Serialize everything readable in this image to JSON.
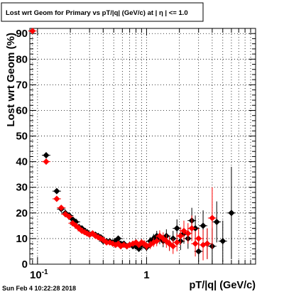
{
  "chart_data": {
    "type": "scatter",
    "title": "Lost wrt Geom for Primary vs pT/|q| (GeV/c) at |  η | <= 1.0",
    "xlabel": "pT/|q| (GeV/c)",
    "ylabel": "Lost wrt Geom (%)",
    "xscale": "log",
    "xlim": [
      0.085,
      10.0
    ],
    "ylim": [
      0,
      92
    ],
    "yticks": [
      0,
      10,
      20,
      30,
      40,
      50,
      60,
      70,
      80,
      90
    ],
    "xtick_labels": [
      {
        "value": 0.1,
        "base": "10",
        "exp": "-1"
      },
      {
        "value": 1.0,
        "base": "1",
        "exp": ""
      }
    ],
    "grid": true,
    "timestamp": "Sun Feb  4 10:22:28 2018",
    "colors": {
      "series_black": "#000000",
      "series_red": "#ff0000"
    },
    "series": [
      {
        "color": "black",
        "x": [
          0.12,
          0.15,
          0.165,
          0.18,
          0.195,
          0.21,
          0.225,
          0.24,
          0.255,
          0.27,
          0.285,
          0.3,
          0.32,
          0.34,
          0.36,
          0.38,
          0.4,
          0.43,
          0.46,
          0.49,
          0.52,
          0.55,
          0.58,
          0.62,
          0.66,
          0.7,
          0.75,
          0.8,
          0.85,
          0.9,
          0.95,
          1.0,
          1.08,
          1.16,
          1.24,
          1.32,
          1.42,
          1.52,
          1.62,
          1.75,
          1.9,
          2.05,
          2.2,
          2.4,
          2.6,
          2.8,
          3.0,
          3.3,
          3.6,
          4.0,
          4.4,
          5.0,
          6.0
        ],
        "y": [
          42.5,
          28.5,
          21.5,
          20,
          19,
          17.5,
          16.5,
          14.5,
          14,
          13,
          12.5,
          11.5,
          12,
          11.5,
          11,
          10.5,
          9,
          9,
          9,
          8.5,
          9,
          10,
          8,
          8,
          7,
          7.5,
          7,
          7,
          6,
          7.5,
          7.5,
          6.5,
          9,
          10,
          11,
          10,
          9,
          11,
          8,
          10,
          14,
          9,
          12,
          10,
          17,
          14,
          5,
          15,
          8,
          7,
          16.5,
          9,
          20
        ],
        "err": [
          1.2,
          1.0,
          0.9,
          0.8,
          0.8,
          0.7,
          0.7,
          0.7,
          0.7,
          0.7,
          0.7,
          0.7,
          0.7,
          0.7,
          0.7,
          0.7,
          0.8,
          0.8,
          0.8,
          0.8,
          0.9,
          0.9,
          0.9,
          0.9,
          1.0,
          1.0,
          1.0,
          1.1,
          1.2,
          1.3,
          1.4,
          1.5,
          1.6,
          1.8,
          2.0,
          2.2,
          2.4,
          2.6,
          2.8,
          3.0,
          3.5,
          3.5,
          4.0,
          4.0,
          5.0,
          5.0,
          4.0,
          6.0,
          6.0,
          7.0,
          8.0,
          8.0,
          18.0
        ]
      },
      {
        "color": "red",
        "x": [
          0.09,
          0.12,
          0.15,
          0.165,
          0.18,
          0.195,
          0.21,
          0.225,
          0.24,
          0.255,
          0.27,
          0.285,
          0.3,
          0.32,
          0.34,
          0.36,
          0.38,
          0.4,
          0.43,
          0.46,
          0.49,
          0.52,
          0.55,
          0.58,
          0.62,
          0.66,
          0.7,
          0.75,
          0.8,
          0.85,
          0.9,
          0.95,
          1.0,
          1.08,
          1.16,
          1.24,
          1.32,
          1.42,
          1.52,
          1.62,
          1.75,
          1.9,
          2.05,
          2.2,
          2.4,
          2.6,
          2.8,
          3.0,
          3.3,
          3.6,
          4.0
        ],
        "y": [
          91,
          40,
          25.5,
          22,
          19.5,
          18.5,
          16,
          15,
          14,
          13,
          12.5,
          12,
          11.5,
          12,
          11,
          10.5,
          10,
          9.5,
          8.5,
          8.5,
          8,
          7.5,
          8,
          7,
          7.5,
          7,
          7.5,
          8,
          8.5,
          7.5,
          8.5,
          8,
          7,
          7.5,
          8.5,
          9,
          11,
          10,
          9,
          8,
          7,
          8.5,
          11,
          13,
          12,
          14,
          8,
          10,
          7.5,
          8,
          18
        ],
        "err": [
          0.5,
          1.2,
          1.0,
          0.9,
          0.8,
          0.8,
          0.7,
          0.7,
          0.7,
          0.7,
          0.7,
          0.7,
          0.7,
          0.7,
          0.7,
          0.7,
          0.7,
          0.8,
          0.8,
          0.8,
          0.8,
          0.9,
          0.9,
          0.9,
          0.9,
          1.0,
          1.0,
          1.0,
          1.1,
          1.2,
          1.3,
          1.4,
          1.5,
          1.6,
          1.8,
          2.0,
          2.2,
          2.4,
          2.6,
          2.8,
          3.0,
          3.5,
          3.5,
          4.0,
          4.0,
          5.0,
          5.0,
          4.0,
          6.0,
          6.0,
          12.0
        ]
      }
    ]
  }
}
